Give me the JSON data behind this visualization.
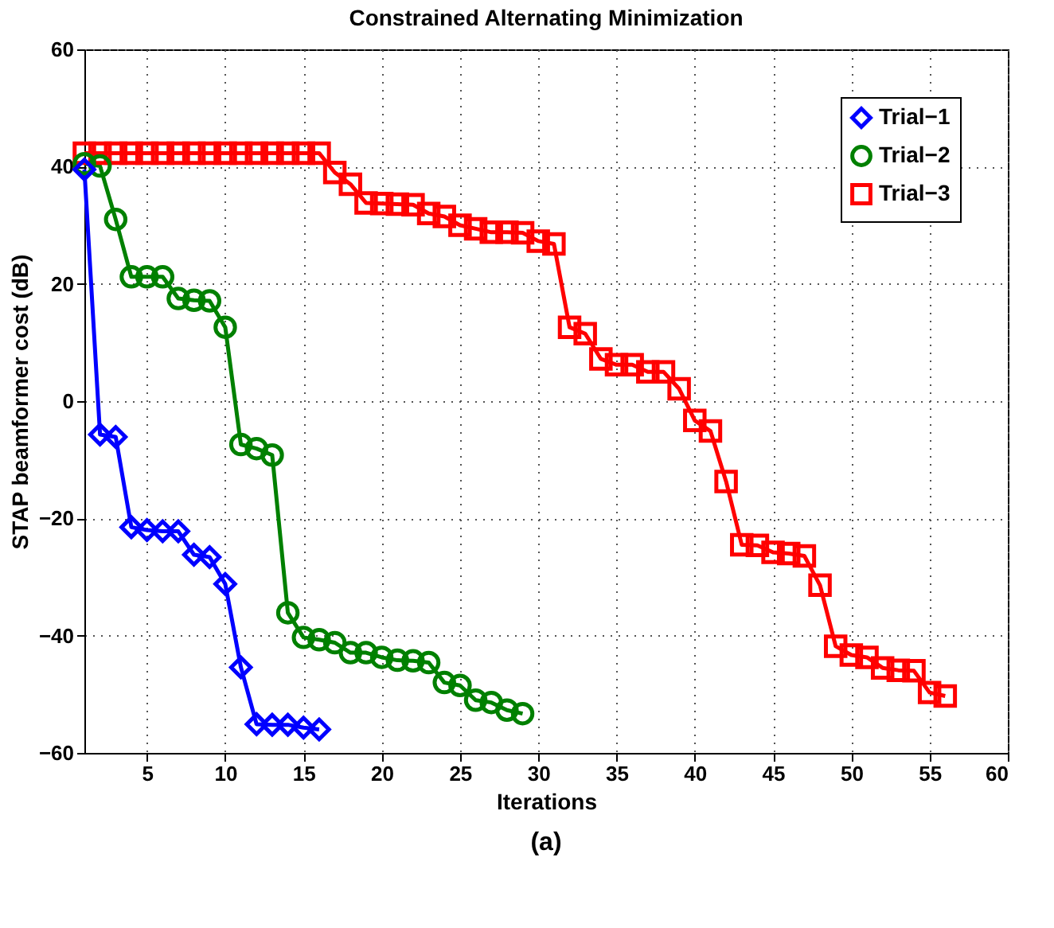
{
  "chart_data": {
    "type": "line",
    "title": "Constrained Alternating Minimization",
    "xlabel": "Iterations",
    "ylabel": "STAP beamformer cost (dB)",
    "annotations": [
      "(a)"
    ],
    "xlim": [
      1,
      60
    ],
    "xticks": [
      5,
      10,
      15,
      20,
      25,
      30,
      35,
      40,
      45,
      50,
      55,
      60
    ],
    "ylim": [
      -60,
      60
    ],
    "yticks": [
      -60,
      -40,
      -20,
      0,
      20,
      40,
      60
    ],
    "grid": true,
    "legend": "top right",
    "line_style": "solid",
    "series": [
      {
        "name": "Trial−1",
        "color": "#0000ff",
        "marker": "diamond",
        "x": [
          1,
          2,
          3,
          4,
          5,
          6,
          7,
          8,
          9,
          10,
          11,
          12,
          13,
          14,
          15,
          16
        ],
        "values": [
          39.5,
          -5.7,
          -6.1,
          -21.5,
          -22,
          -22.2,
          -22.2,
          -26.2,
          -26.6,
          -31.2,
          -45.4,
          -55.1,
          -55.2,
          -55.2,
          -55.7,
          -56
        ]
      },
      {
        "name": "Trial−2",
        "color": "#008000",
        "marker": "circle",
        "x": [
          1,
          2,
          3,
          4,
          5,
          6,
          7,
          8,
          9,
          10,
          11,
          12,
          13,
          14,
          15,
          16,
          17,
          18,
          19,
          20,
          21,
          22,
          23,
          24,
          25,
          26,
          27,
          28,
          29
        ],
        "values": [
          40.5,
          40.1,
          31,
          21.2,
          21.2,
          21.2,
          17.5,
          17.2,
          17.1,
          12.6,
          -7.4,
          -8.1,
          -9.2,
          -36.1,
          -40.3,
          -40.7,
          -41.2,
          -42.9,
          -42.9,
          -43.7,
          -44.2,
          -44.3,
          -44.6,
          -48,
          -48.5,
          -51,
          -51.4,
          -52.7,
          -53.3
        ]
      },
      {
        "name": "Trial−3",
        "color": "#ff0000",
        "marker": "square",
        "x": [
          1,
          2,
          3,
          4,
          5,
          6,
          7,
          8,
          9,
          10,
          11,
          12,
          13,
          14,
          15,
          16,
          17,
          18,
          19,
          20,
          21,
          22,
          23,
          24,
          25,
          26,
          27,
          28,
          29,
          30,
          31,
          32,
          33,
          34,
          35,
          36,
          37,
          38,
          39,
          40,
          41,
          42,
          43,
          44,
          45,
          46,
          47,
          48,
          49,
          50,
          51,
          52,
          53,
          54,
          55,
          56
        ],
        "values": [
          42.3,
          42.3,
          42.3,
          42.3,
          42.3,
          42.3,
          42.3,
          42.3,
          42.3,
          42.3,
          42.3,
          42.3,
          42.3,
          42.3,
          42.3,
          42.3,
          39,
          37,
          33.8,
          33.7,
          33.6,
          33.5,
          32,
          31.5,
          30,
          29.4,
          28.8,
          28.8,
          28.7,
          27.3,
          26.8,
          12.6,
          11.5,
          7.2,
          6.2,
          6.2,
          5,
          5,
          2.1,
          -3.3,
          -5.1,
          -13.7,
          -24.5,
          -24.6,
          -25.8,
          -26,
          -26.4,
          -31.4,
          -41.8,
          -43.3,
          -43.7,
          -45.5,
          -45.9,
          -46,
          -49.7,
          -50.3
        ]
      }
    ]
  }
}
